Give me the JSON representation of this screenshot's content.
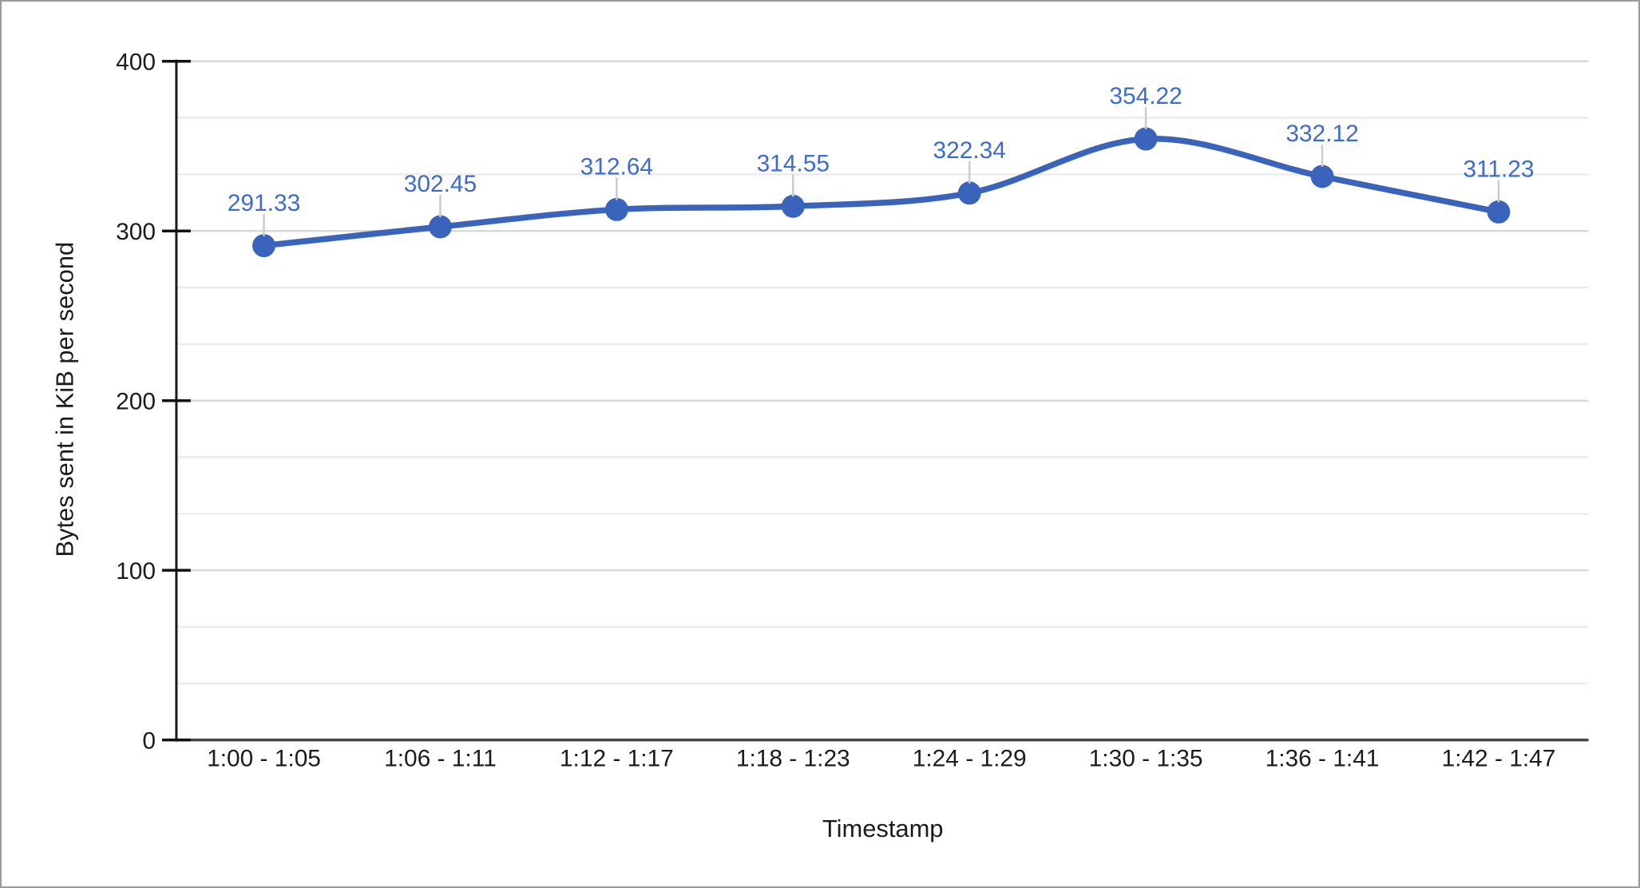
{
  "chart_data": {
    "type": "line",
    "title": "",
    "xlabel": "Timestamp",
    "ylabel": "Bytes sent in KiB per second",
    "categories": [
      "1:00 - 1:05",
      "1:06 - 1:11",
      "1:12 - 1:17",
      "1:18 - 1:23",
      "1:24 - 1:29",
      "1:30 - 1:35",
      "1:36 - 1:41",
      "1:42 - 1:47"
    ],
    "values": [
      291.33,
      302.45,
      312.64,
      314.55,
      322.34,
      354.22,
      332.12,
      311.23
    ],
    "point_labels": [
      "291.33",
      "302.45",
      "312.64",
      "314.55",
      "322.34",
      "354.22",
      "332.12",
      "311.23"
    ],
    "ylim": [
      0,
      400
    ],
    "yticks": [
      0,
      100,
      200,
      300,
      400
    ],
    "grid": {
      "major_gridlines": true,
      "minor_gridlines_between_majors": 2
    },
    "legend_position": "none",
    "smooth_curve": true,
    "series_color": "#3a64bc",
    "annotation_color": "#3d6bd0"
  }
}
